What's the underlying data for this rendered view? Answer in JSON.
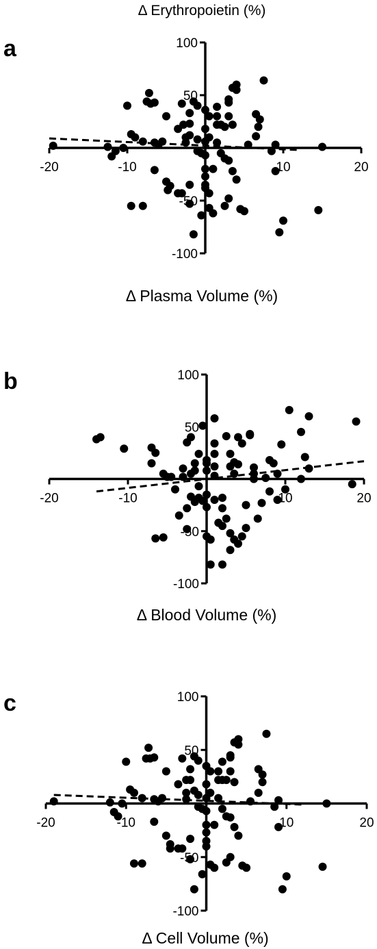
{
  "figure": {
    "top_title": "Δ Erythropoietin (%)"
  },
  "chart_data": [
    {
      "type": "scatter",
      "panel": "a",
      "xlabel": "Δ Plasma Volume (%)",
      "ylabel": "",
      "xlim": [
        -20,
        20
      ],
      "ylim": [
        -100,
        100
      ],
      "xticks": [
        -20,
        -10,
        10,
        20
      ],
      "yticks": [
        100,
        50,
        -50,
        -100
      ],
      "points": [
        [
          -19.5,
          2
        ],
        [
          -12.5,
          1
        ],
        [
          -12,
          -8
        ],
        [
          -11.5,
          -3
        ],
        [
          -10.5,
          0
        ],
        [
          -10,
          40
        ],
        [
          -9.5,
          13
        ],
        [
          -9,
          10
        ],
        [
          -9.5,
          -55
        ],
        [
          -8,
          -55
        ],
        [
          -8,
          6
        ],
        [
          -7.5,
          44
        ],
        [
          -7.2,
          52
        ],
        [
          -7,
          42
        ],
        [
          -6.5,
          43
        ],
        [
          -6.5,
          5
        ],
        [
          -6.5,
          -21
        ],
        [
          -6,
          3
        ],
        [
          -5.5,
          6
        ],
        [
          -5,
          30
        ],
        [
          -5,
          -32
        ],
        [
          -4.8,
          -40
        ],
        [
          -4.5,
          -36
        ],
        [
          -3.5,
          -43
        ],
        [
          -3,
          -43
        ],
        [
          -3.5,
          18
        ],
        [
          -3,
          42
        ],
        [
          -2.8,
          22
        ],
        [
          -2.5,
          10
        ],
        [
          -2.5,
          5
        ],
        [
          -2,
          33
        ],
        [
          -2,
          23
        ],
        [
          -2,
          12
        ],
        [
          -2,
          -35
        ],
        [
          -2,
          -53
        ],
        [
          -1.5,
          44
        ],
        [
          -1.5,
          -82
        ],
        [
          -1,
          40
        ],
        [
          -1,
          8
        ],
        [
          -1,
          -3
        ],
        [
          -0.5,
          -5
        ],
        [
          -0.5,
          -64
        ],
        [
          0,
          36
        ],
        [
          0,
          18
        ],
        [
          0,
          6
        ],
        [
          0,
          -7
        ],
        [
          0,
          -20
        ],
        [
          0,
          -27
        ],
        [
          0,
          -35
        ],
        [
          0,
          -38
        ],
        [
          0.5,
          -57
        ],
        [
          0.5,
          -43
        ],
        [
          0.5,
          30
        ],
        [
          0.5,
          10
        ],
        [
          1,
          -20
        ],
        [
          1,
          -62
        ],
        [
          1.5,
          5
        ],
        [
          1.5,
          30
        ],
        [
          1.5,
          22
        ],
        [
          1.5,
          39
        ],
        [
          2,
          22
        ],
        [
          2,
          -5
        ],
        [
          2.5,
          -10
        ],
        [
          2.5,
          -55
        ],
        [
          2.5,
          20
        ],
        [
          3,
          30
        ],
        [
          3,
          -12
        ],
        [
          3,
          43
        ],
        [
          3,
          46
        ],
        [
          3,
          -48
        ],
        [
          3.5,
          57
        ],
        [
          3.5,
          22
        ],
        [
          3.5,
          -22
        ],
        [
          4,
          -30
        ],
        [
          4,
          55
        ],
        [
          4,
          60
        ],
        [
          4.5,
          -58
        ],
        [
          5,
          -60
        ],
        [
          5.5,
          3
        ],
        [
          6.5,
          11
        ],
        [
          6.5,
          32
        ],
        [
          6.8,
          20
        ],
        [
          7,
          27
        ],
        [
          8.5,
          -3
        ],
        [
          9,
          -22
        ],
        [
          9,
          3
        ],
        [
          9.5,
          -80
        ],
        [
          10,
          -69
        ],
        [
          14.5,
          -59
        ],
        [
          15,
          1
        ],
        [
          7.5,
          64
        ]
      ],
      "trend": {
        "x": [
          -20,
          12
        ],
        "y": [
          9,
          -2
        ],
        "style": "dashed"
      }
    },
    {
      "type": "scatter",
      "panel": "b",
      "xlabel": "Δ Blood Volume (%)",
      "ylabel": "",
      "xlim": [
        -20,
        20
      ],
      "ylim": [
        -100,
        100
      ],
      "xticks": [
        -20,
        -10,
        10,
        20
      ],
      "yticks": [
        100,
        50,
        -50,
        -100
      ],
      "points": [
        [
          -14,
          38
        ],
        [
          -13.5,
          40
        ],
        [
          -10.5,
          29
        ],
        [
          -7,
          30
        ],
        [
          -7,
          15
        ],
        [
          -6.5,
          25
        ],
        [
          -6.5,
          -57
        ],
        [
          -5.5,
          -56
        ],
        [
          -5.5,
          5
        ],
        [
          -5,
          2
        ],
        [
          -4.5,
          2
        ],
        [
          -4,
          -10
        ],
        [
          -3.5,
          -35
        ],
        [
          -3,
          10
        ],
        [
          -3,
          2
        ],
        [
          -2.5,
          -48
        ],
        [
          -2.5,
          -28
        ],
        [
          -2.5,
          35
        ],
        [
          -2,
          40
        ],
        [
          -2,
          5
        ],
        [
          -2,
          -17
        ],
        [
          -1.5,
          15
        ],
        [
          -1.5,
          8
        ],
        [
          -1.5,
          -22
        ],
        [
          -1,
          -7
        ],
        [
          -1,
          -18
        ],
        [
          -0.5,
          51
        ],
        [
          -0.5,
          -21
        ],
        [
          0,
          18
        ],
        [
          0,
          15
        ],
        [
          0,
          8
        ],
        [
          0,
          -15
        ],
        [
          0,
          -27
        ],
        [
          0,
          -55
        ],
        [
          0.5,
          -82
        ],
        [
          0.5,
          -58
        ],
        [
          1,
          58
        ],
        [
          1,
          34
        ],
        [
          1,
          24
        ],
        [
          1,
          12
        ],
        [
          1,
          3
        ],
        [
          1,
          -20
        ],
        [
          1.5,
          -42
        ],
        [
          2,
          -45
        ],
        [
          2,
          -28
        ],
        [
          2,
          -18
        ],
        [
          2,
          -82
        ],
        [
          2.5,
          -38
        ],
        [
          2.5,
          41
        ],
        [
          3,
          24
        ],
        [
          3,
          12
        ],
        [
          3,
          -52
        ],
        [
          3,
          -68
        ],
        [
          3.5,
          16
        ],
        [
          3.5,
          5
        ],
        [
          3.5,
          -58
        ],
        [
          4,
          40
        ],
        [
          4,
          14
        ],
        [
          4,
          -62
        ],
        [
          4.5,
          34
        ],
        [
          4.5,
          -55
        ],
        [
          5,
          -47
        ],
        [
          5,
          -25
        ],
        [
          5.5,
          43
        ],
        [
          5.5,
          42
        ],
        [
          6,
          11
        ],
        [
          6,
          5
        ],
        [
          6,
          0
        ],
        [
          6.5,
          -38
        ],
        [
          7,
          -23
        ],
        [
          7.5,
          1
        ],
        [
          8,
          18
        ],
        [
          8,
          -12
        ],
        [
          8.5,
          15
        ],
        [
          9,
          5
        ],
        [
          9.5,
          33
        ],
        [
          9,
          -20
        ],
        [
          10,
          -10
        ],
        [
          10.5,
          66
        ],
        [
          12,
          0
        ],
        [
          12,
          45
        ],
        [
          12.5,
          21
        ],
        [
          13,
          10
        ],
        [
          13,
          60
        ],
        [
          19,
          55
        ],
        [
          18.5,
          -5
        ],
        [
          -1,
          24
        ]
      ],
      "trend": {
        "x": [
          -14,
          20
        ],
        "y": [
          -12,
          17
        ],
        "style": "dashed"
      }
    },
    {
      "type": "scatter",
      "panel": "c",
      "xlabel": "Δ Cell Volume (%)",
      "ylabel": "",
      "xlim": [
        -20,
        20
      ],
      "ylim": [
        -100,
        100
      ],
      "xticks": [
        -20,
        -10,
        10,
        20
      ],
      "yticks": [
        100,
        50,
        -50,
        -100
      ],
      "points": [
        [
          -19,
          2
        ],
        [
          -12,
          1
        ],
        [
          -11.5,
          -8
        ],
        [
          -11,
          -12
        ],
        [
          -10.5,
          0
        ],
        [
          -10,
          39
        ],
        [
          -9.5,
          13
        ],
        [
          -9,
          10
        ],
        [
          -9,
          -56
        ],
        [
          -8,
          -56
        ],
        [
          -8,
          5
        ],
        [
          -7.5,
          42
        ],
        [
          -7.2,
          52
        ],
        [
          -7,
          42
        ],
        [
          -6.5,
          43
        ],
        [
          -6.5,
          4
        ],
        [
          -6.5,
          -17
        ],
        [
          -6,
          2
        ],
        [
          -5.5,
          5
        ],
        [
          -5,
          30
        ],
        [
          -5,
          -30
        ],
        [
          -4.5,
          -38
        ],
        [
          -4.5,
          -42
        ],
        [
          -3.5,
          -42
        ],
        [
          -3,
          -42
        ],
        [
          -3.5,
          18
        ],
        [
          -3,
          42
        ],
        [
          -2.5,
          22
        ],
        [
          -2.5,
          10
        ],
        [
          -2.5,
          4
        ],
        [
          -2,
          32
        ],
        [
          -2,
          22
        ],
        [
          -1.5,
          12
        ],
        [
          -2,
          -33
        ],
        [
          -2,
          -52
        ],
        [
          -1.5,
          44
        ],
        [
          -1.5,
          -80
        ],
        [
          -1,
          40
        ],
        [
          -1,
          8
        ],
        [
          -1,
          -3
        ],
        [
          -0.5,
          -5
        ],
        [
          -0.5,
          -66
        ],
        [
          0,
          35
        ],
        [
          0,
          18
        ],
        [
          0,
          5
        ],
        [
          0,
          -7
        ],
        [
          0,
          -20
        ],
        [
          0,
          -27
        ],
        [
          0,
          -35
        ],
        [
          0,
          -40
        ],
        [
          0.5,
          -57
        ],
        [
          0.5,
          30
        ],
        [
          0.5,
          10
        ],
        [
          1,
          -20
        ],
        [
          1,
          -60
        ],
        [
          1.5,
          5
        ],
        [
          1.5,
          30
        ],
        [
          1.5,
          22
        ],
        [
          2,
          39
        ],
        [
          2,
          22
        ],
        [
          2,
          -5
        ],
        [
          2.5,
          -12
        ],
        [
          2.5,
          -55
        ],
        [
          2.5,
          22
        ],
        [
          3,
          30
        ],
        [
          3,
          -13
        ],
        [
          3,
          43
        ],
        [
          3,
          45
        ],
        [
          3,
          -50
        ],
        [
          3.5,
          57
        ],
        [
          3.5,
          20
        ],
        [
          3.5,
          -22
        ],
        [
          4,
          -30
        ],
        [
          4,
          55
        ],
        [
          4,
          60
        ],
        [
          4.5,
          -58
        ],
        [
          5,
          -60
        ],
        [
          5.5,
          2
        ],
        [
          6.5,
          10
        ],
        [
          6.5,
          32
        ],
        [
          7,
          20
        ],
        [
          7,
          27
        ],
        [
          8.5,
          -3
        ],
        [
          9,
          -22
        ],
        [
          9,
          3
        ],
        [
          9.5,
          -80
        ],
        [
          10,
          -68
        ],
        [
          14.5,
          -59
        ],
        [
          15,
          0
        ],
        [
          7.5,
          65
        ]
      ],
      "trend": {
        "x": [
          -19,
          12
        ],
        "y": [
          8,
          -1
        ],
        "style": "dashed"
      }
    }
  ]
}
